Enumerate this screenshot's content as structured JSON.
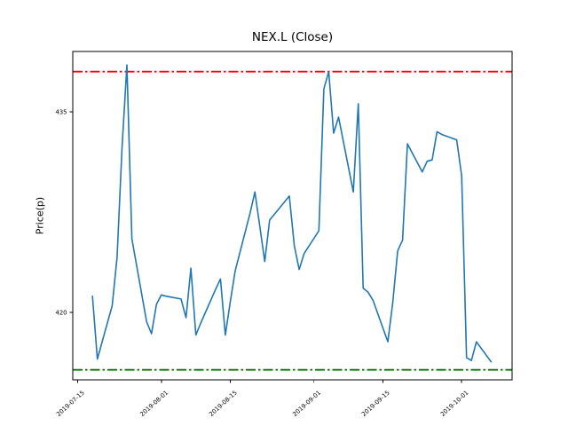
{
  "figure": {
    "title": "NEX.L (Close)",
    "ylabel": "Price(p)",
    "background_color": "#ffffff",
    "axes_color": "#000000",
    "tick_color": "#000000"
  },
  "chart_data": {
    "type": "line",
    "title": "NEX.L (Close)",
    "xlabel": "",
    "ylabel": "Price(p)",
    "grid": false,
    "legend": null,
    "x_tick_labels": [
      "2019-07-15",
      "2019-08-01",
      "2019-08-15",
      "2019-09-01",
      "2019-09-15",
      "2019-10-01"
    ],
    "y_tick_labels": [
      420,
      435
    ],
    "xlim": [
      "2019-07-14T00:00:00",
      "2019-10-11T06:00:00"
    ],
    "ylim": [
      414.95,
      439.51
    ],
    "series": [
      {
        "name": "Close",
        "color": "#1f77b4",
        "style": "solid",
        "x": [
          "2019-07-18",
          "2019-07-19",
          "2019-07-22",
          "2019-07-23",
          "2019-07-24",
          "2019-07-25",
          "2019-07-26",
          "2019-07-29",
          "2019-07-30",
          "2019-07-31",
          "2019-08-01",
          "2019-08-02",
          "2019-08-05",
          "2019-08-06",
          "2019-08-07",
          "2019-08-08",
          "2019-08-09",
          "2019-08-12",
          "2019-08-13",
          "2019-08-14",
          "2019-08-15",
          "2019-08-16",
          "2019-08-19",
          "2019-08-20",
          "2019-08-21",
          "2019-08-22",
          "2019-08-23",
          "2019-08-27",
          "2019-08-28",
          "2019-08-29",
          "2019-08-30",
          "2019-09-02",
          "2019-09-03",
          "2019-09-04",
          "2019-09-05",
          "2019-09-06",
          "2019-09-09",
          "2019-09-10",
          "2019-09-11",
          "2019-09-12",
          "2019-09-13",
          "2019-09-16",
          "2019-09-17",
          "2019-09-18",
          "2019-09-19",
          "2019-09-20",
          "2019-09-23",
          "2019-09-24",
          "2019-09-25",
          "2019-09-26",
          "2019-09-27",
          "2019-09-30",
          "2019-10-01",
          "2019-10-02",
          "2019-10-03",
          "2019-10-04",
          "2019-10-07"
        ],
        "values": [
          421.2,
          416.5,
          420.5,
          424.1,
          432.3,
          438.5,
          425.5,
          419.3,
          418.4,
          420.6,
          421.3,
          421.2,
          421.0,
          419.6,
          423.3,
          418.3,
          419.2,
          421.7,
          422.5,
          418.3,
          420.8,
          423.1,
          427.4,
          429.0,
          426.4,
          423.8,
          426.9,
          428.7,
          425.0,
          423.2,
          424.4,
          426.1,
          436.7,
          438.0,
          433.4,
          434.6,
          429.0,
          435.6,
          421.8,
          421.5,
          420.9,
          417.8,
          420.7,
          424.6,
          425.4,
          432.6,
          430.5,
          431.3,
          431.4,
          433.5,
          433.3,
          432.9,
          430.2,
          416.6,
          416.4,
          417.8,
          416.3
        ]
      }
    ],
    "hlines": [
      {
        "name": "upper-threshold",
        "value": 438.0,
        "color": "#ff0000",
        "style": "dashdot"
      },
      {
        "name": "lower-threshold",
        "value": 415.7,
        "color": "#008000",
        "style": "dashdot"
      }
    ]
  }
}
